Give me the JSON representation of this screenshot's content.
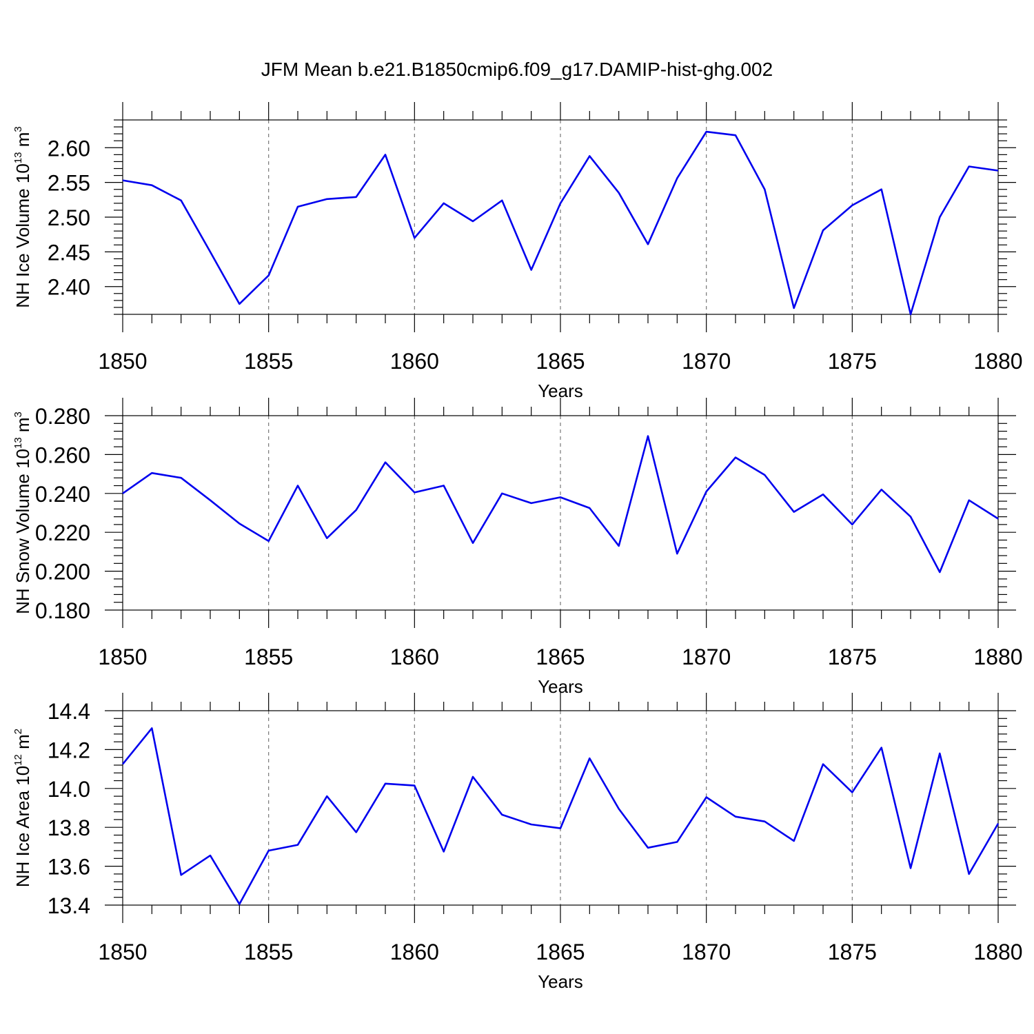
{
  "title": "JFM Mean b.e21.B1850cmip6.f09_g17.DAMIP-hist-ghg.002",
  "chart_data": [
    {
      "type": "line",
      "ylabel": {
        "main": "NH Ice Volume 10",
        "exp": "13",
        "unit": " m",
        "unit_exp": "3"
      },
      "xlabel": "Years",
      "xlim": [
        1850,
        1880
      ],
      "ylim": [
        2.36,
        2.64
      ],
      "xticks": [
        1850,
        1855,
        1860,
        1865,
        1870,
        1875,
        1880
      ],
      "xtick_labels": [
        "1850",
        "1855",
        "1860",
        "1865",
        "1870",
        "1875",
        "1880"
      ],
      "yticks": [
        2.4,
        2.45,
        2.5,
        2.55,
        2.6
      ],
      "ytick_labels": [
        "2.40",
        "2.45",
        "2.50",
        "2.55",
        "2.60"
      ],
      "y_minor_step": 0.01,
      "x": [
        1850,
        1851,
        1852,
        1853,
        1854,
        1855,
        1856,
        1857,
        1858,
        1859,
        1860,
        1861,
        1862,
        1863,
        1864,
        1865,
        1866,
        1867,
        1868,
        1869,
        1870,
        1871,
        1872,
        1873,
        1874,
        1875,
        1876,
        1877,
        1878,
        1879,
        1880
      ],
      "y": [
        2.553,
        2.546,
        2.524,
        2.45,
        2.375,
        2.416,
        2.515,
        2.526,
        2.529,
        2.59,
        2.47,
        2.52,
        2.494,
        2.524,
        2.424,
        2.52,
        2.588,
        2.535,
        2.461,
        2.556,
        2.623,
        2.618,
        2.54,
        2.369,
        2.481,
        2.517,
        2.54,
        2.36,
        2.5,
        2.573,
        2.567
      ],
      "color": "#0000ee",
      "grid": "dashed vertical at major x ticks"
    },
    {
      "type": "line",
      "ylabel": {
        "main": "NH Snow Volume 10",
        "exp": "13",
        "unit": " m",
        "unit_exp": "3"
      },
      "xlabel": "Years",
      "xlim": [
        1850,
        1880
      ],
      "ylim": [
        0.18,
        0.28
      ],
      "xticks": [
        1850,
        1855,
        1860,
        1865,
        1870,
        1875,
        1880
      ],
      "xtick_labels": [
        "1850",
        "1855",
        "1860",
        "1865",
        "1870",
        "1875",
        "1880"
      ],
      "yticks": [
        0.18,
        0.2,
        0.22,
        0.24,
        0.26,
        0.28
      ],
      "ytick_labels": [
        "0.180",
        "0.200",
        "0.220",
        "0.240",
        "0.260",
        "0.280"
      ],
      "y_minor_step": 0.004,
      "x": [
        1850,
        1851,
        1852,
        1853,
        1854,
        1855,
        1856,
        1857,
        1858,
        1859,
        1860,
        1861,
        1862,
        1863,
        1864,
        1865,
        1866,
        1867,
        1868,
        1869,
        1870,
        1871,
        1872,
        1873,
        1874,
        1875,
        1876,
        1877,
        1878,
        1879,
        1880
      ],
      "y": [
        0.24,
        0.2505,
        0.248,
        0.2365,
        0.2245,
        0.2155,
        0.244,
        0.217,
        0.2315,
        0.256,
        0.2405,
        0.244,
        0.2145,
        0.24,
        0.235,
        0.238,
        0.2325,
        0.213,
        0.2695,
        0.209,
        0.241,
        0.2585,
        0.2495,
        0.2305,
        0.2395,
        0.224,
        0.242,
        0.228,
        0.1995,
        0.2365,
        0.227
      ],
      "color": "#0000ee",
      "grid": "dashed vertical at major x ticks"
    },
    {
      "type": "line",
      "ylabel": {
        "main": "NH Ice Area 10",
        "exp": "12",
        "unit": " m",
        "unit_exp": "2"
      },
      "xlabel": "Years",
      "xlim": [
        1850,
        1880
      ],
      "ylim": [
        13.4,
        14.4
      ],
      "xticks": [
        1850,
        1855,
        1860,
        1865,
        1870,
        1875,
        1880
      ],
      "xtick_labels": [
        "1850",
        "1855",
        "1860",
        "1865",
        "1870",
        "1875",
        "1880"
      ],
      "yticks": [
        13.4,
        13.6,
        13.8,
        14.0,
        14.2,
        14.4
      ],
      "ytick_labels": [
        "13.4",
        "13.6",
        "13.8",
        "14.0",
        "14.2",
        "14.4"
      ],
      "y_minor_step": 0.04,
      "x": [
        1850,
        1851,
        1852,
        1853,
        1854,
        1855,
        1856,
        1857,
        1858,
        1859,
        1860,
        1861,
        1862,
        1863,
        1864,
        1865,
        1866,
        1867,
        1868,
        1869,
        1870,
        1871,
        1872,
        1873,
        1874,
        1875,
        1876,
        1877,
        1878,
        1879,
        1880
      ],
      "y": [
        14.125,
        14.31,
        13.555,
        13.655,
        13.405,
        13.68,
        13.71,
        13.96,
        13.775,
        14.025,
        14.015,
        13.675,
        14.06,
        13.865,
        13.815,
        13.795,
        14.155,
        13.895,
        13.695,
        13.725,
        13.955,
        13.855,
        13.83,
        13.73,
        14.125,
        13.98,
        14.21,
        13.59,
        14.18,
        13.56,
        13.82
      ],
      "color": "#0000ee",
      "grid": "dashed vertical at major x ticks"
    }
  ]
}
